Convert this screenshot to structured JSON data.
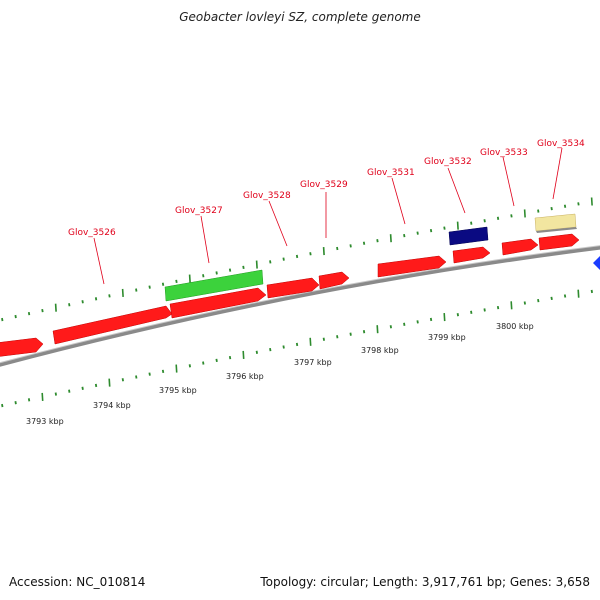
{
  "title": "Geobacter lovleyi SZ, complete genome",
  "footer": {
    "accession": "Accession: NC_010814",
    "summary": "Topology: circular; Length: 3,917,761 bp; Genes: 3,658"
  },
  "colors": {
    "gene_red": "#ff1a1a",
    "gene_green": "#3cd23c",
    "gene_navy": "#0a0a82",
    "gene_yellow": "#f2e6a0",
    "gene_blue": "#1a3cff",
    "backbone": "#888888",
    "tick": "#2e8b2e",
    "label": "#e0001a"
  },
  "gene_labels": [
    "Glov_3526",
    "Glov_3527",
    "Glov_3528",
    "Glov_3529",
    "Glov_3531",
    "Glov_3532",
    "Glov_3533",
    "Glov_3534"
  ],
  "kbp_labels": [
    "3793 kbp",
    "3794 kbp",
    "3795 kbp",
    "3796 kbp",
    "3797 kbp",
    "3798 kbp",
    "3799 kbp",
    "3800 kbp"
  ]
}
